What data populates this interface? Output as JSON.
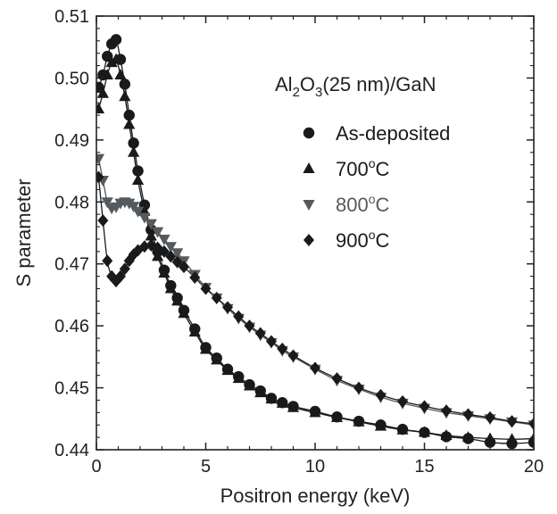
{
  "chart_data": {
    "type": "scatter",
    "xlabel": "Positron energy (keV)",
    "ylabel": "S parameter",
    "xlim": [
      0,
      20
    ],
    "ylim": [
      0.44,
      0.51
    ],
    "x_ticks": [
      0,
      5,
      10,
      15,
      20
    ],
    "y_ticks": [
      0.44,
      0.45,
      0.46,
      0.47,
      0.48,
      0.49,
      0.5,
      0.51
    ],
    "x_tick_labels": [
      "0",
      "5",
      "10",
      "15",
      "20"
    ],
    "y_tick_labels": [
      "0.44",
      "0.45",
      "0.46",
      "0.47",
      "0.48",
      "0.49",
      "0.50",
      "0.51"
    ],
    "grid": false,
    "legend_position": "upper-right",
    "annotation": {
      "parts": [
        "Al",
        "2",
        "O",
        "3",
        "(25 nm)/GaN"
      ]
    },
    "series": [
      {
        "name": "As-deposited",
        "marker": "circle",
        "color": "#1a1a1a",
        "x": [
          0.1,
          0.3,
          0.5,
          0.7,
          0.9,
          1.1,
          1.3,
          1.5,
          1.7,
          1.9,
          2.2,
          2.5,
          2.8,
          3.1,
          3.4,
          3.7,
          4.0,
          4.5,
          5.0,
          5.5,
          6.0,
          6.5,
          7.0,
          7.5,
          8.0,
          8.5,
          9.0,
          10.0,
          11.0,
          12.0,
          13.0,
          14.0,
          15.0,
          16.0,
          17.0,
          18.0,
          19.0,
          20.0
        ],
        "y": [
          0.4985,
          0.5005,
          0.5035,
          0.5055,
          0.5062,
          0.503,
          0.499,
          0.494,
          0.4895,
          0.485,
          0.4795,
          0.4755,
          0.472,
          0.469,
          0.4665,
          0.4645,
          0.4625,
          0.4595,
          0.4565,
          0.4548,
          0.453,
          0.4518,
          0.4505,
          0.4495,
          0.4483,
          0.4476,
          0.447,
          0.4462,
          0.4453,
          0.4446,
          0.444,
          0.4433,
          0.4428,
          0.4421,
          0.4418,
          0.4412,
          0.441,
          0.4412
        ]
      },
      {
        "name": "700°C",
        "label_parts": [
          "700",
          "o",
          "C"
        ],
        "marker": "triangle-up",
        "color": "#1a1a1a",
        "x": [
          0.1,
          0.3,
          0.5,
          0.7,
          0.9,
          1.1,
          1.3,
          1.5,
          1.7,
          1.9,
          2.2,
          2.5,
          2.8,
          3.1,
          3.4,
          3.7,
          4.0,
          4.5,
          5.0,
          5.5,
          6.0,
          6.5,
          7.0,
          7.5,
          8.0,
          8.5,
          9.0,
          10.0,
          11.0,
          12.0,
          13.0,
          14.0,
          15.0,
          16.0,
          17.0,
          18.0,
          19.0,
          20.0
        ],
        "y": [
          0.495,
          0.4975,
          0.5005,
          0.5025,
          0.503,
          0.5005,
          0.497,
          0.4925,
          0.488,
          0.4835,
          0.4785,
          0.4745,
          0.4712,
          0.4685,
          0.466,
          0.464,
          0.462,
          0.459,
          0.4562,
          0.4545,
          0.4528,
          0.4515,
          0.4503,
          0.4492,
          0.4482,
          0.4475,
          0.4468,
          0.446,
          0.4452,
          0.4445,
          0.4438,
          0.4432,
          0.4428,
          0.4423,
          0.442,
          0.4418,
          0.4417,
          0.4418
        ]
      },
      {
        "name": "800°C",
        "label_parts": [
          "800",
          "o",
          "C"
        ],
        "marker": "triangle-down",
        "color": "#555a5e",
        "x": [
          0.1,
          0.3,
          0.5,
          0.7,
          0.9,
          1.1,
          1.3,
          1.5,
          1.7,
          1.9,
          2.2,
          2.5,
          2.8,
          3.1,
          3.4,
          3.7,
          4.0,
          4.5,
          5.0,
          5.5,
          6.0,
          6.5,
          7.0,
          7.5,
          8.0,
          8.5,
          9.0,
          10.0,
          11.0,
          12.0,
          13.0,
          14.0,
          15.0,
          16.0,
          17.0,
          18.0,
          19.0,
          20.0
        ],
        "y": [
          0.487,
          0.4835,
          0.48,
          0.479,
          0.4792,
          0.4798,
          0.48,
          0.4798,
          0.4793,
          0.4785,
          0.4775,
          0.4765,
          0.4752,
          0.474,
          0.4728,
          0.4718,
          0.4705,
          0.4683,
          0.4662,
          0.4645,
          0.4628,
          0.4612,
          0.4598,
          0.4585,
          0.4573,
          0.456,
          0.455,
          0.453,
          0.4512,
          0.4498,
          0.4485,
          0.4475,
          0.4467,
          0.446,
          0.4455,
          0.445,
          0.4445,
          0.444
        ]
      },
      {
        "name": "900°C",
        "label_parts": [
          "900",
          "o",
          "C"
        ],
        "marker": "diamond",
        "color": "#1a1a1a",
        "x": [
          0.1,
          0.3,
          0.5,
          0.7,
          0.9,
          1.1,
          1.3,
          1.5,
          1.7,
          1.9,
          2.2,
          2.5,
          2.8,
          3.1,
          3.4,
          3.7,
          4.0,
          4.5,
          5.0,
          5.5,
          6.0,
          6.5,
          7.0,
          7.5,
          8.0,
          8.5,
          9.0,
          10.0,
          11.0,
          12.0,
          13.0,
          14.0,
          15.0,
          16.0,
          17.0,
          18.0,
          19.0,
          20.0
        ],
        "y": [
          0.484,
          0.477,
          0.4705,
          0.468,
          0.4672,
          0.468,
          0.4692,
          0.4705,
          0.4715,
          0.4722,
          0.4728,
          0.473,
          0.4726,
          0.472,
          0.4712,
          0.4703,
          0.4695,
          0.4678,
          0.466,
          0.4645,
          0.463,
          0.4615,
          0.46,
          0.4588,
          0.4575,
          0.4563,
          0.4552,
          0.4532,
          0.4515,
          0.45,
          0.4488,
          0.4478,
          0.447,
          0.4463,
          0.4457,
          0.4452,
          0.4446,
          0.4442
        ]
      }
    ]
  }
}
